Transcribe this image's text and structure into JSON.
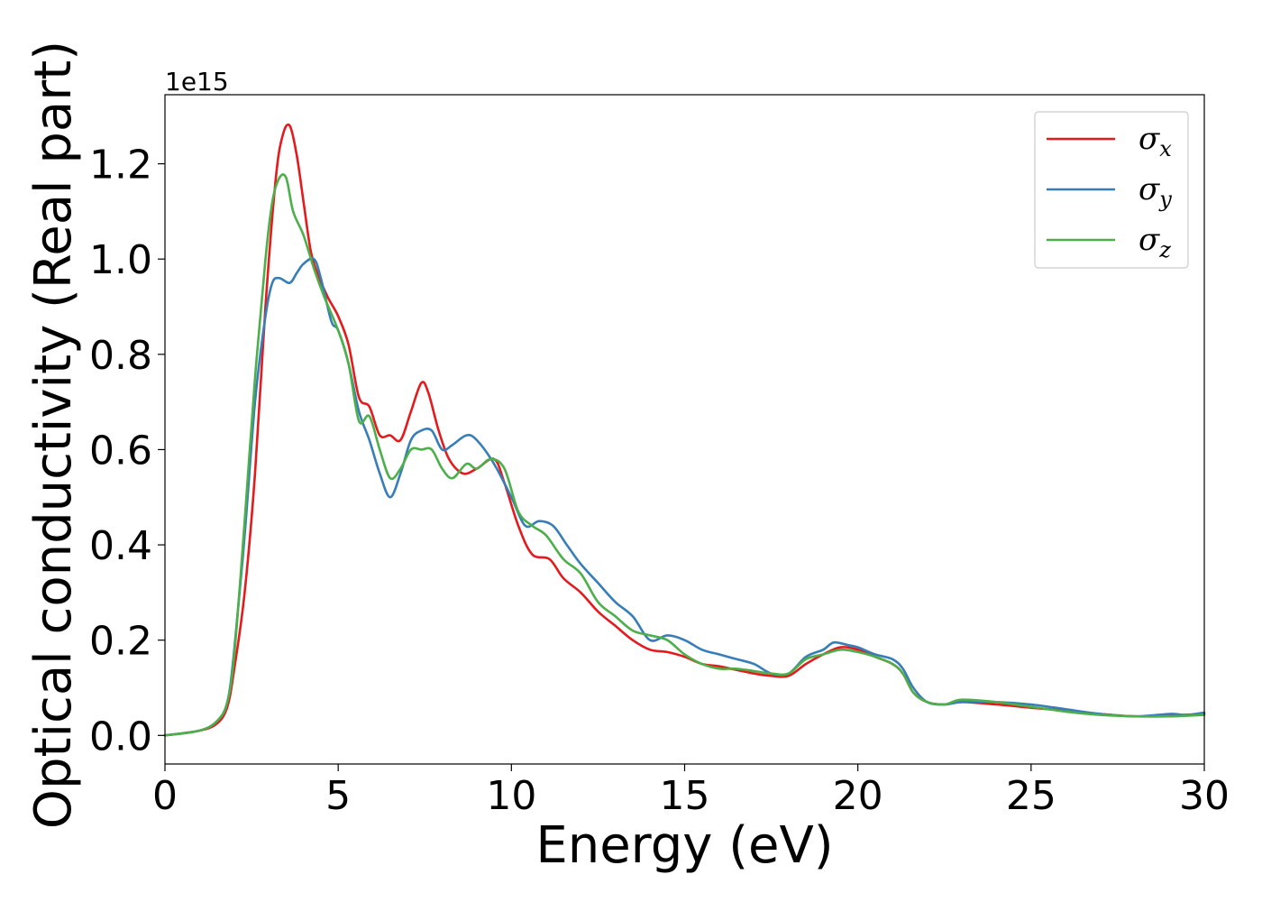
{
  "chart_data": {
    "type": "line",
    "xlabel": "Energy (eV)",
    "ylabel": "Optical conductivity (Real part)",
    "y_offset_label": "1e15",
    "xlim": [
      0,
      30
    ],
    "ylim": [
      -0.06,
      1.345
    ],
    "xticks": [
      0,
      5,
      10,
      15,
      20,
      25,
      30
    ],
    "xtick_labels": [
      "0",
      "5",
      "10",
      "15",
      "20",
      "25",
      "30"
    ],
    "yticks": [
      0.0,
      0.2,
      0.4,
      0.6,
      0.8,
      1.0,
      1.2
    ],
    "ytick_labels": [
      "0.0",
      "0.2",
      "0.4",
      "0.6",
      "0.8",
      "1.0",
      "1.2"
    ],
    "grid": false,
    "legend_position": "top-right",
    "series": [
      {
        "name": "σx",
        "legend_base": "σ",
        "legend_sub": "x",
        "color": "#e41a1c",
        "x": [
          0,
          1,
          1.5,
          1.8,
          2.0,
          2.3,
          2.6,
          2.9,
          3.2,
          3.4,
          3.6,
          3.8,
          4.0,
          4.2,
          4.4,
          4.7,
          5.0,
          5.3,
          5.6,
          5.9,
          6.2,
          6.5,
          6.8,
          7.1,
          7.4,
          7.6,
          7.9,
          8.2,
          8.6,
          9.0,
          9.5,
          9.8,
          10.2,
          10.6,
          11.1,
          11.5,
          12.0,
          12.5,
          13.0,
          13.5,
          14.0,
          14.5,
          15.0,
          15.5,
          16.0,
          17.0,
          17.5,
          18.0,
          18.5,
          19.0,
          19.5,
          20.0,
          20.5,
          21.0,
          21.3,
          21.6,
          22.0,
          22.5,
          23.0,
          24.0,
          25.0,
          26.0,
          27.0,
          28.0,
          29.0,
          30.0
        ],
        "y": [
          0.0,
          0.01,
          0.025,
          0.06,
          0.14,
          0.3,
          0.55,
          0.9,
          1.17,
          1.26,
          1.28,
          1.22,
          1.12,
          1.02,
          0.97,
          0.92,
          0.88,
          0.82,
          0.71,
          0.69,
          0.63,
          0.63,
          0.62,
          0.68,
          0.74,
          0.72,
          0.64,
          0.58,
          0.55,
          0.56,
          0.58,
          0.53,
          0.44,
          0.38,
          0.37,
          0.33,
          0.3,
          0.26,
          0.23,
          0.2,
          0.18,
          0.175,
          0.165,
          0.15,
          0.145,
          0.13,
          0.125,
          0.125,
          0.15,
          0.17,
          0.185,
          0.18,
          0.165,
          0.15,
          0.13,
          0.09,
          0.07,
          0.065,
          0.07,
          0.065,
          0.058,
          0.052,
          0.045,
          0.04,
          0.042,
          0.045
        ]
      },
      {
        "name": "σy",
        "legend_base": "σ",
        "legend_sub": "y",
        "color": "#377eb8",
        "x": [
          0,
          1,
          1.5,
          1.8,
          2.0,
          2.3,
          2.6,
          2.9,
          3.1,
          3.3,
          3.6,
          3.8,
          4.0,
          4.3,
          4.5,
          4.8,
          5.0,
          5.3,
          5.6,
          5.9,
          6.2,
          6.5,
          6.8,
          7.1,
          7.4,
          7.7,
          8.0,
          8.3,
          8.7,
          9.0,
          9.5,
          10.0,
          10.4,
          10.8,
          11.2,
          11.6,
          12.0,
          12.5,
          13.0,
          13.5,
          14.0,
          14.5,
          15.0,
          15.5,
          16.0,
          16.5,
          17.0,
          17.5,
          18.0,
          18.5,
          19.0,
          19.3,
          19.7,
          20.0,
          20.5,
          21.0,
          21.3,
          21.6,
          22.0,
          22.5,
          23.0,
          24.0,
          25.0,
          26.0,
          27.0,
          28.0,
          29.0,
          29.5,
          30.0
        ],
        "y": [
          0.0,
          0.01,
          0.03,
          0.07,
          0.18,
          0.42,
          0.7,
          0.88,
          0.95,
          0.96,
          0.95,
          0.97,
          0.99,
          1.0,
          0.96,
          0.87,
          0.85,
          0.78,
          0.68,
          0.62,
          0.55,
          0.5,
          0.55,
          0.62,
          0.64,
          0.64,
          0.6,
          0.61,
          0.63,
          0.62,
          0.57,
          0.5,
          0.44,
          0.45,
          0.44,
          0.4,
          0.36,
          0.32,
          0.28,
          0.25,
          0.2,
          0.21,
          0.2,
          0.18,
          0.17,
          0.16,
          0.15,
          0.13,
          0.13,
          0.165,
          0.18,
          0.195,
          0.19,
          0.185,
          0.17,
          0.16,
          0.14,
          0.1,
          0.07,
          0.065,
          0.07,
          0.07,
          0.065,
          0.055,
          0.045,
          0.04,
          0.045,
          0.043,
          0.048
        ]
      },
      {
        "name": "σz",
        "legend_base": "σ",
        "legend_sub": "z",
        "color": "#4daf4a",
        "x": [
          0,
          1,
          1.5,
          1.8,
          2.0,
          2.3,
          2.6,
          2.9,
          3.1,
          3.3,
          3.5,
          3.7,
          4.0,
          4.3,
          4.6,
          5.0,
          5.3,
          5.6,
          5.9,
          6.2,
          6.5,
          6.8,
          7.1,
          7.4,
          7.7,
          8.0,
          8.3,
          8.7,
          9.0,
          9.4,
          9.8,
          10.2,
          10.6,
          11.0,
          11.5,
          12.0,
          12.5,
          13.0,
          13.5,
          14.0,
          14.5,
          15.0,
          15.5,
          16.0,
          16.5,
          17.0,
          17.5,
          18.0,
          18.5,
          19.0,
          19.5,
          20.0,
          20.5,
          21.0,
          21.3,
          21.6,
          22.0,
          22.5,
          23.0,
          24.0,
          25.0,
          26.0,
          27.0,
          28.0,
          29.0,
          30.0
        ],
        "y": [
          0.0,
          0.01,
          0.03,
          0.07,
          0.17,
          0.45,
          0.75,
          1.0,
          1.12,
          1.17,
          1.17,
          1.1,
          1.05,
          0.98,
          0.92,
          0.85,
          0.78,
          0.66,
          0.67,
          0.6,
          0.54,
          0.56,
          0.6,
          0.6,
          0.6,
          0.56,
          0.54,
          0.57,
          0.56,
          0.58,
          0.56,
          0.47,
          0.44,
          0.42,
          0.37,
          0.34,
          0.28,
          0.25,
          0.22,
          0.21,
          0.2,
          0.17,
          0.15,
          0.14,
          0.14,
          0.135,
          0.13,
          0.13,
          0.16,
          0.17,
          0.18,
          0.175,
          0.165,
          0.15,
          0.13,
          0.09,
          0.07,
          0.065,
          0.075,
          0.07,
          0.06,
          0.05,
          0.043,
          0.04,
          0.04,
          0.043
        ]
      }
    ]
  }
}
